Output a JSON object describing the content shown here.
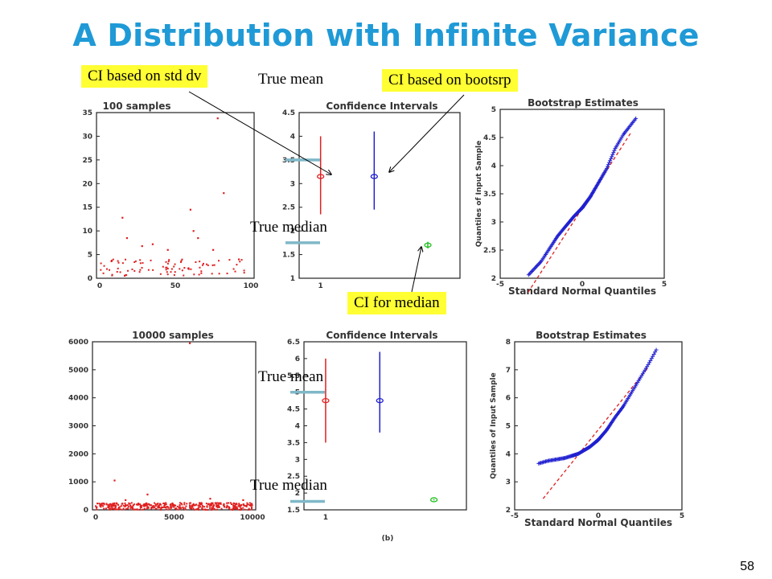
{
  "slide": {
    "title": "A Distribution with Infinite Variance",
    "page_number": "58",
    "callouts": {
      "ci_std": "CI based on std dv",
      "ci_boot": "CI based on bootsrp",
      "ci_median": "CI for median"
    },
    "labels": {
      "true_mean": "True mean",
      "true_median": "True median"
    },
    "caption": "(b)"
  },
  "colors": {
    "title": "#1f9ad6",
    "callout_bg": "#ffff33",
    "std_ci": "#e02020",
    "boot_ci": "#2020d0",
    "median_ci": "#20c020",
    "marker": "#7fb8c8",
    "qq_points": "#2020d0",
    "qq_ref": "#e02020"
  },
  "chart_data": [
    {
      "type": "scatter",
      "title": "100 samples",
      "xlim": [
        0,
        100
      ],
      "ylim": [
        0,
        35
      ],
      "xticks": [
        "0",
        "50",
        "100"
      ],
      "yticks": [
        "0",
        "5",
        "10",
        "15",
        "20",
        "25",
        "30",
        "35"
      ],
      "outliers": [
        [
          15,
          12.8
        ],
        [
          18,
          8.5
        ],
        [
          28,
          6.8
        ],
        [
          35,
          7.2
        ],
        [
          45,
          6
        ],
        [
          60,
          14.5
        ],
        [
          62,
          10
        ],
        [
          65,
          8.5
        ],
        [
          75,
          6
        ],
        [
          78,
          33.8
        ],
        [
          82,
          18
        ],
        [
          92,
          4
        ]
      ],
      "bulk_y_range": [
        0.5,
        4
      ]
    },
    {
      "type": "scatter",
      "title": "Confidence Intervals",
      "ylim": [
        1,
        4.5
      ],
      "yticks": [
        "1",
        "1.5",
        "2",
        "2.5",
        "3",
        "3.5",
        "4",
        "4.5"
      ],
      "xticks": [
        "1"
      ],
      "intervals": [
        {
          "name": "CI based on std dv",
          "x": 1,
          "center": 3.15,
          "low": 2.35,
          "high": 4.0
        },
        {
          "name": "CI based on bootsrp",
          "x": 1.5,
          "center": 3.15,
          "low": 2.45,
          "high": 4.1
        },
        {
          "name": "CI for median",
          "x": 2.0,
          "center": 1.7,
          "low": 1.63,
          "high": 1.77
        }
      ],
      "true_mean": 3.5,
      "true_median": 1.75
    },
    {
      "type": "scatter",
      "title": "Bootstrap Estimates",
      "xlabel": "Standard Normal Quantiles",
      "ylabel": "Quantiles of Input Sample",
      "xlim": [
        -5,
        5
      ],
      "ylim": [
        2,
        5
      ],
      "xticks": [
        "-5",
        "0",
        "5"
      ],
      "yticks": [
        "2",
        "2.5",
        "3",
        "3.5",
        "4",
        "4.5",
        "5"
      ],
      "quantile_curve": [
        [
          -3.3,
          2.05
        ],
        [
          -2.5,
          2.3
        ],
        [
          -1.5,
          2.75
        ],
        [
          -0.5,
          3.1
        ],
        [
          0,
          3.25
        ],
        [
          0.5,
          3.45
        ],
        [
          1,
          3.7
        ],
        [
          1.5,
          3.95
        ],
        [
          2,
          4.3
        ],
        [
          2.5,
          4.55
        ],
        [
          3.3,
          4.85
        ]
      ],
      "reference_line": [
        [
          -3.3,
          1.75
        ],
        [
          3.0,
          4.6
        ]
      ]
    },
    {
      "type": "scatter",
      "title": "10000 samples",
      "xlim": [
        0,
        10000
      ],
      "ylim": [
        0,
        6000
      ],
      "xticks": [
        "0",
        "5000",
        "10000"
      ],
      "yticks": [
        "0",
        "1000",
        "2000",
        "3000",
        "4000",
        "5000",
        "6000"
      ],
      "outliers": [
        [
          1200,
          1050
        ],
        [
          1900,
          350
        ],
        [
          3300,
          550
        ],
        [
          6000,
          5950
        ],
        [
          7300,
          400
        ],
        [
          8600,
          250
        ],
        [
          9400,
          350
        ]
      ],
      "bulk_y_range": [
        0,
        250
      ]
    },
    {
      "type": "scatter",
      "title": "Confidence Intervals",
      "ylim": [
        1.5,
        6.5
      ],
      "yticks": [
        "1.5",
        "2",
        "2.5",
        "3",
        "3.5",
        "4",
        "4.5",
        "5",
        "5.5",
        "6",
        "6.5"
      ],
      "xticks": [
        "1"
      ],
      "intervals": [
        {
          "name": "CI based on std dv",
          "x": 1,
          "center": 4.75,
          "low": 3.5,
          "high": 6.0
        },
        {
          "name": "CI based on bootsrp",
          "x": 1.5,
          "center": 4.75,
          "low": 3.8,
          "high": 6.2
        },
        {
          "name": "CI for median",
          "x": 2.0,
          "center": 1.8,
          "low": 1.78,
          "high": 1.82
        }
      ],
      "true_mean": 5.0,
      "true_median": 1.75
    },
    {
      "type": "scatter",
      "title": "Bootstrap Estimates",
      "xlabel": "Standard Normal Quantiles",
      "ylabel": "Quantiles of Input Sample",
      "xlim": [
        -5,
        5
      ],
      "ylim": [
        2,
        8
      ],
      "xticks": [
        "-5",
        "0",
        "5"
      ],
      "yticks": [
        "2",
        "3",
        "4",
        "5",
        "6",
        "7",
        "8"
      ],
      "quantile_curve": [
        [
          -3.6,
          3.65
        ],
        [
          -3,
          3.75
        ],
        [
          -2,
          3.85
        ],
        [
          -1.2,
          4.0
        ],
        [
          -0.5,
          4.25
        ],
        [
          0,
          4.5
        ],
        [
          0.5,
          4.85
        ],
        [
          1,
          5.3
        ],
        [
          1.5,
          5.7
        ],
        [
          2,
          6.2
        ],
        [
          2.5,
          6.7
        ],
        [
          3.0,
          7.2
        ],
        [
          3.5,
          7.75
        ]
      ],
      "reference_line": [
        [
          -3.3,
          2.4
        ],
        [
          3.0,
          7.1
        ]
      ]
    }
  ]
}
